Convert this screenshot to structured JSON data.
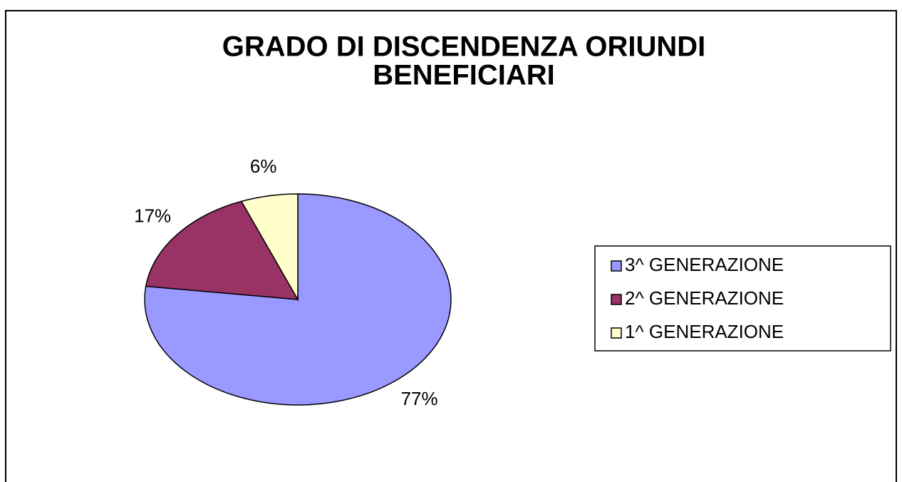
{
  "chart_data": {
    "type": "pie",
    "title": [
      "GRADO DI DISCENDENZA ORIUNDI",
      "BENEFICIARI"
    ],
    "categories": [
      "3^ GENERAZIONE",
      "2^ GENERAZIONE",
      "1^ GENERAZIONE"
    ],
    "values": [
      77,
      17,
      6
    ],
    "value_labels": [
      "77%",
      "17%",
      "6%"
    ],
    "colors": [
      "#9999ff",
      "#993366",
      "#ffffcc"
    ],
    "legend": "right"
  }
}
